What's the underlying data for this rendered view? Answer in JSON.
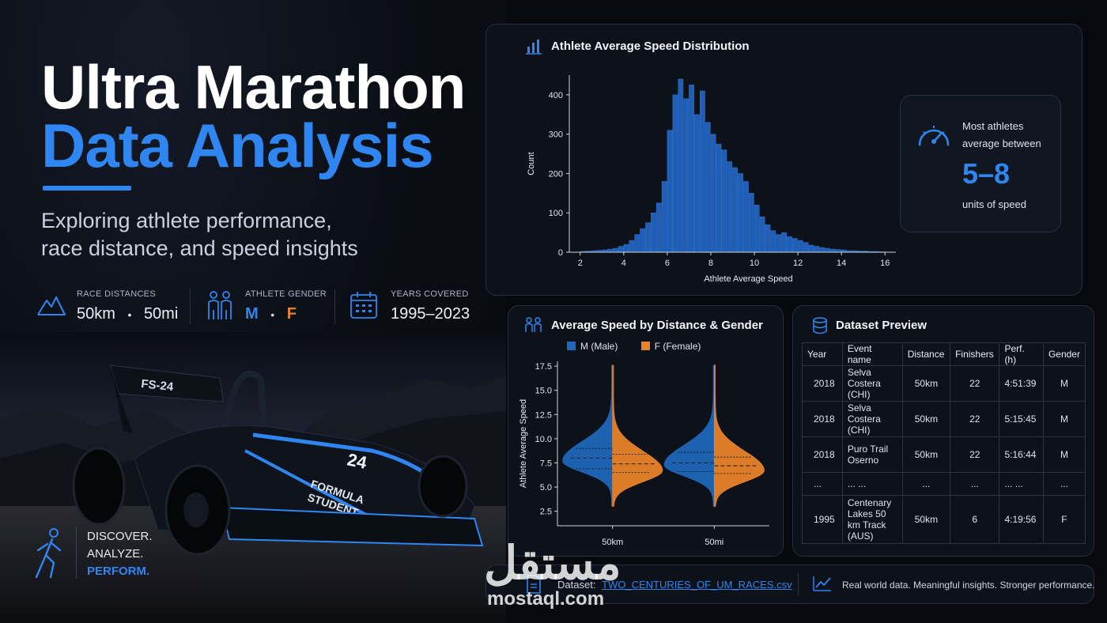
{
  "hero": {
    "title_line1": "Ultra Marathon",
    "title_line2": "Data Analysis",
    "subtitle_line1": "Exploring athlete performance,",
    "subtitle_line2": "race distance, and speed insights"
  },
  "stats": [
    {
      "label": "RACE DISTANCES",
      "value_a": "50km",
      "sep": "•",
      "value_b": "50mi",
      "icon": "mountain-icon"
    },
    {
      "label": "ATHLETE GENDER",
      "value_a": "M",
      "sep": "•",
      "value_b": "F",
      "icon": "people-icon"
    },
    {
      "label": "YEARS COVERED",
      "value": "1995–2023",
      "icon": "calendar-icon"
    }
  ],
  "car": {
    "wing_text": "FS-24",
    "number": "24",
    "side_text_1": "FORMULA",
    "side_text_2": "STUDENT"
  },
  "tagline": {
    "line1": "DISCOVER.",
    "line2": "ANALYZE.",
    "line3": "PERFORM."
  },
  "colors": {
    "accent": "#2f86f0",
    "female": "#e8832a",
    "male": "#1f67b8",
    "bg": "#07090e"
  },
  "insight": {
    "line1": "Most athletes",
    "line2": "average between",
    "big": "5–8",
    "unit": "units of speed"
  },
  "violin_panel": {
    "title": "Average Speed by Distance & Gender",
    "legend_male": "M (Male)",
    "legend_female": "F (Female)"
  },
  "dataset": {
    "title": "Dataset Preview",
    "columns": [
      "Year",
      "Event name",
      "Distance",
      "Finishers",
      "Perf. (h)",
      "Gender"
    ],
    "rows": [
      [
        "2018",
        "Selva Costera (CHI)",
        "50km",
        "22",
        "4:51:39",
        "M"
      ],
      [
        "2018",
        "Selva Costera (CHI)",
        "50km",
        "22",
        "5:15:45",
        "M"
      ],
      [
        "2018",
        "Puro Trail Oserno",
        "50km",
        "22",
        "5:16:44",
        "M"
      ],
      [
        "...",
        "... ...",
        "...",
        "...",
        "... ...",
        "..."
      ],
      [
        "1995",
        "Centenary Lakes 50 km Track (AUS)",
        "50km",
        "6",
        "4:19:56",
        "F"
      ]
    ]
  },
  "footer": {
    "dataset_label": "Dataset:",
    "dataset_file": "TWO_CENTURIES_OF_UM_RACES.csv",
    "slogan": "Real world data. Meaningful insights. Stronger performance."
  },
  "watermark": {
    "arabic": "مستقل",
    "latin": "mostaql.com"
  },
  "chart_data": [
    {
      "type": "bar",
      "title": "Athlete Average Speed Distribution",
      "xlabel": "Athlete Average Speed",
      "ylabel": "Count",
      "xlim": [
        1.5,
        16.5
      ],
      "ylim": [
        0,
        450
      ],
      "xticks": [
        2,
        4,
        6,
        8,
        10,
        12,
        14,
        16
      ],
      "yticks": [
        0,
        100,
        200,
        300,
        400
      ],
      "bin_width": 0.25,
      "x": [
        2.0,
        2.25,
        2.5,
        2.75,
        3.0,
        3.25,
        3.5,
        3.75,
        4.0,
        4.25,
        4.5,
        4.75,
        5.0,
        5.25,
        5.5,
        5.75,
        6.0,
        6.25,
        6.5,
        6.75,
        7.0,
        7.25,
        7.5,
        7.75,
        8.0,
        8.25,
        8.5,
        8.75,
        9.0,
        9.25,
        9.5,
        9.75,
        10.0,
        10.25,
        10.5,
        10.75,
        11.0,
        11.25,
        11.5,
        11.75,
        12.0,
        12.25,
        12.5,
        12.75,
        13.0,
        13.25,
        13.5,
        13.75,
        14.0,
        14.25,
        14.5,
        14.75,
        15.0,
        15.25,
        15.5,
        15.75
      ],
      "values": [
        2,
        3,
        4,
        5,
        6,
        8,
        10,
        15,
        20,
        30,
        45,
        60,
        75,
        100,
        125,
        180,
        310,
        400,
        440,
        390,
        425,
        350,
        410,
        330,
        300,
        275,
        260,
        230,
        215,
        200,
        180,
        150,
        120,
        90,
        70,
        55,
        45,
        50,
        40,
        35,
        30,
        25,
        18,
        15,
        12,
        10,
        8,
        7,
        6,
        4,
        4,
        3,
        3,
        2,
        2,
        1
      ]
    },
    {
      "type": "violin",
      "title": "Average Speed by Distance & Gender",
      "ylabel": "Athlete Average Speed",
      "categories": [
        "50km",
        "50mi"
      ],
      "ylim": [
        1,
        18
      ],
      "yticks": [
        2.5,
        5.0,
        7.5,
        10.0,
        12.5,
        15.0,
        17.5
      ],
      "series": [
        {
          "name": "M (Male)",
          "side": "left",
          "medians": [
            8.0,
            7.5
          ],
          "q1": [
            6.9,
            6.6
          ],
          "q3": [
            9.0,
            8.6
          ],
          "peak": [
            7.7,
            7.3
          ]
        },
        {
          "name": "F (Female)",
          "side": "right",
          "medians": [
            7.4,
            7.2
          ],
          "q1": [
            6.5,
            6.4
          ],
          "q3": [
            8.4,
            8.1
          ],
          "peak": [
            6.7,
            6.7
          ]
        }
      ]
    }
  ]
}
